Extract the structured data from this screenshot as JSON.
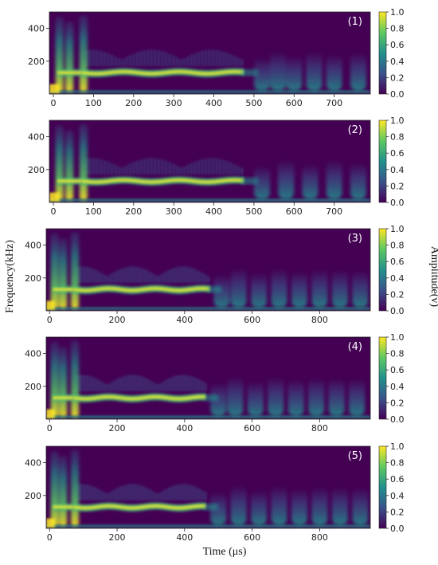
{
  "figure": {
    "ylabel": "Frequency(kHz)",
    "xlabel": "Time (μs)",
    "colorbar_label": "Amplitude(v)",
    "colormap": "viridis",
    "colormap_stops": [
      "#440154",
      "#3b528b",
      "#21918c",
      "#5ec962",
      "#fde725"
    ]
  },
  "chart_data": [
    {
      "type": "heatmap",
      "panel_label": "(1)",
      "x_range": [
        -10,
        790
      ],
      "x_ticks": [
        0,
        100,
        200,
        300,
        400,
        500,
        600,
        700
      ],
      "y_range": [
        0,
        500
      ],
      "y_ticks": [
        200,
        400
      ],
      "colorbar_range": [
        0.0,
        1.0
      ],
      "colorbar_ticks": [
        "0.0",
        "0.2",
        "0.4",
        "0.6",
        "0.8",
        "1.0"
      ],
      "ridge_frequency": 130,
      "ridge_end_time": 470,
      "early_bursts": [
        15,
        40,
        75
      ],
      "late_bursts": [
        520,
        560,
        600,
        650,
        700,
        760
      ]
    },
    {
      "type": "heatmap",
      "panel_label": "(2)",
      "x_range": [
        -10,
        790
      ],
      "x_ticks": [
        0,
        100,
        200,
        300,
        400,
        500,
        600,
        700
      ],
      "y_range": [
        0,
        500
      ],
      "y_ticks": [
        200,
        400
      ],
      "colorbar_range": [
        0.0,
        1.0
      ],
      "colorbar_ticks": [
        "0.0",
        "0.2",
        "0.4",
        "0.6",
        "0.8",
        "1.0"
      ],
      "ridge_frequency": 130,
      "ridge_end_time": 470,
      "early_bursts": [
        15,
        40,
        75
      ],
      "late_bursts": [
        520,
        580,
        640,
        700,
        760
      ]
    },
    {
      "type": "heatmap",
      "panel_label": "(3)",
      "x_range": [
        -10,
        950
      ],
      "x_ticks": [
        0,
        200,
        400,
        600,
        800
      ],
      "y_range": [
        0,
        500
      ],
      "y_ticks": [
        200,
        400
      ],
      "colorbar_range": [
        0.0,
        1.0
      ],
      "colorbar_ticks": [
        "0.0",
        "0.2",
        "0.4",
        "0.6",
        "0.8",
        "1.0"
      ],
      "ridge_frequency": 130,
      "ridge_end_time": 470,
      "early_bursts": [
        15,
        40,
        75
      ],
      "late_bursts": [
        510,
        560,
        620,
        680,
        740,
        800,
        860,
        920
      ]
    },
    {
      "type": "heatmap",
      "panel_label": "(4)",
      "x_range": [
        -10,
        950
      ],
      "x_ticks": [
        0,
        200,
        400,
        600,
        800
      ],
      "y_range": [
        0,
        500
      ],
      "y_ticks": [
        200,
        400
      ],
      "colorbar_range": [
        0.0,
        1.0
      ],
      "colorbar_ticks": [
        "0.0",
        "0.2",
        "0.4",
        "0.6",
        "0.8",
        "1.0"
      ],
      "ridge_frequency": 130,
      "ridge_end_time": 460,
      "early_bursts": [
        15,
        40,
        75
      ],
      "late_bursts": [
        500,
        550,
        610,
        670,
        730,
        790,
        850,
        910
      ]
    },
    {
      "type": "heatmap",
      "panel_label": "(5)",
      "x_range": [
        -10,
        950
      ],
      "x_ticks": [
        0,
        200,
        400,
        600,
        800
      ],
      "y_range": [
        0,
        500
      ],
      "y_ticks": [
        200,
        400
      ],
      "colorbar_range": [
        0.0,
        1.0
      ],
      "colorbar_ticks": [
        "0.0",
        "0.2",
        "0.4",
        "0.6",
        "0.8",
        "1.0"
      ],
      "ridge_frequency": 130,
      "ridge_end_time": 460,
      "early_bursts": [
        15,
        40,
        75
      ],
      "late_bursts": [
        500,
        560,
        620,
        680,
        740,
        800,
        860,
        920
      ]
    }
  ]
}
